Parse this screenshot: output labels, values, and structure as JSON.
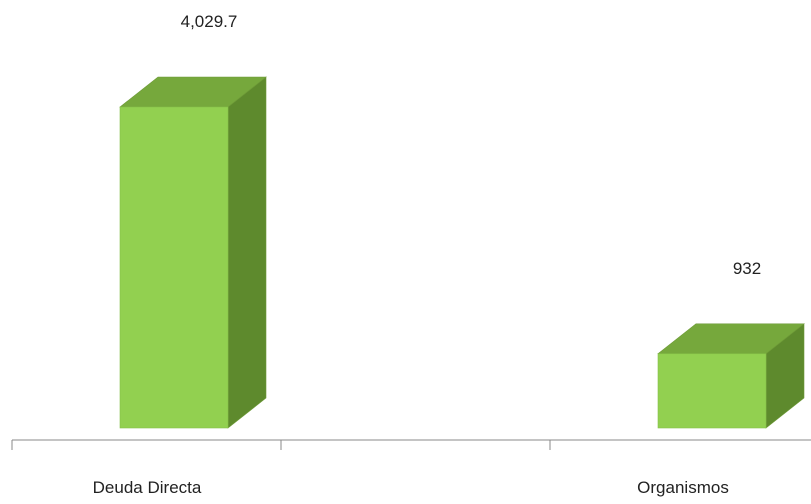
{
  "chart_data": {
    "type": "bar",
    "style": "3d-column",
    "categories": [
      "Deuda Directa",
      "Organismos"
    ],
    "values": [
      4029.7,
      932
    ],
    "data_labels": [
      "4,029.7",
      "932"
    ],
    "title": "",
    "xlabel": "",
    "ylabel": "",
    "ylim": [
      0,
      4100
    ],
    "grid": false,
    "legend": "none",
    "colors": {
      "front": "#92d050",
      "side": "#5e8a2d",
      "top": "#76a83c",
      "edge": "#6e9a38",
      "axis": "#888888"
    }
  }
}
